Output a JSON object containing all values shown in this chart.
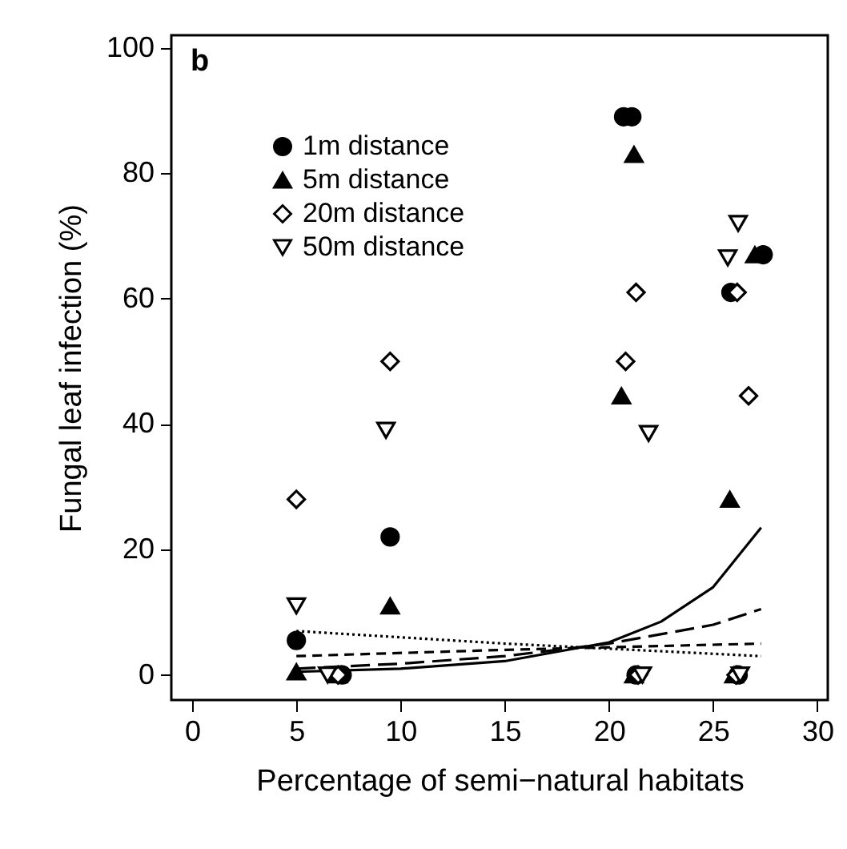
{
  "chart_data": {
    "type": "scatter",
    "xlabel": "Percentage of semi−natural habitats",
    "ylabel": "Fungal leaf infection (%)",
    "annotations": [
      "b"
    ],
    "xlim": [
      -1,
      30.5
    ],
    "xticks": [
      0,
      5,
      10,
      15,
      20,
      25,
      30
    ],
    "ylim": [
      -4,
      102
    ],
    "yticks": [
      0,
      20,
      40,
      60,
      80,
      100
    ],
    "grid": false,
    "legend": "top left",
    "series": [
      {
        "name": "1m distance",
        "color": "#000000",
        "marker": "circle",
        "x": [
          5,
          7.2,
          9.5,
          20.7,
          21.1,
          21.3,
          25.85,
          26.2,
          27.4
        ],
        "values": [
          5.5,
          0,
          22,
          89,
          89,
          0,
          61,
          0,
          67
        ]
      },
      {
        "name": "5m distance",
        "color": "#000000",
        "marker": "triangle",
        "x": [
          5,
          7,
          9.5,
          20.6,
          21.2,
          21.2,
          25.8,
          26,
          27.0
        ],
        "values": [
          0.5,
          0,
          11,
          44.5,
          83,
          0,
          28,
          0,
          67
        ]
      },
      {
        "name": "20m distance",
        "color": "#000000",
        "marker": "diamond",
        "x": [
          5,
          7,
          9.5,
          20.8,
          21.3,
          21.4,
          26.15,
          26.1,
          26.7
        ],
        "values": [
          28,
          0,
          50,
          50,
          61,
          0,
          61,
          0,
          44.5
        ]
      },
      {
        "name": "50m distance",
        "color": "#000000",
        "marker": "triangle-down",
        "x": [
          5,
          6.5,
          9.3,
          21.6,
          21.9,
          25.7,
          26.2,
          26.3
        ],
        "values": [
          11,
          0,
          39,
          0,
          38.5,
          66.5,
          72,
          0
        ]
      },
      {
        "type": "line",
        "color": "#000000",
        "line_style": "solid",
        "x": [
          5,
          10,
          15,
          20,
          22.5,
          25,
          27.3
        ],
        "values": [
          0.5,
          1,
          2.2,
          5.2,
          8.5,
          14,
          23.5
        ]
      },
      {
        "type": "line",
        "color": "#000000",
        "line_style": "longdash",
        "x": [
          5,
          10,
          15,
          20,
          25,
          27.3
        ],
        "values": [
          1,
          1.8,
          3,
          5,
          8,
          10.5
        ]
      },
      {
        "type": "line",
        "color": "#000000",
        "line_style": "dashed",
        "x": [
          5,
          15,
          27.3
        ],
        "values": [
          3,
          4,
          5
        ]
      },
      {
        "type": "line",
        "color": "#000000",
        "line_style": "dotted",
        "x": [
          5,
          15,
          27.3
        ],
        "values": [
          7,
          5,
          3
        ]
      }
    ]
  }
}
